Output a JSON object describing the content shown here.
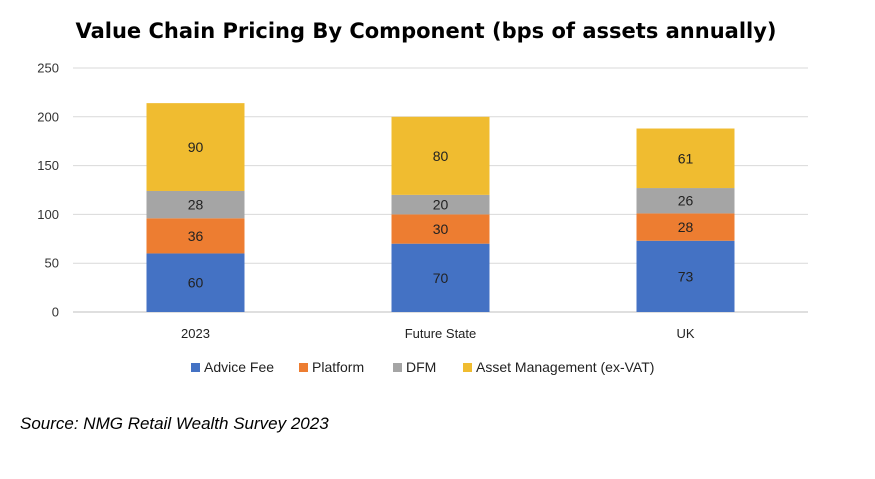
{
  "chart_data": {
    "type": "bar",
    "stacked": true,
    "title": "Value Chain Pricing By Component (bps of assets annually)",
    "categories": [
      "2023",
      "Future State",
      "UK"
    ],
    "series": [
      {
        "name": "Advice Fee",
        "color": "#4472C4",
        "values": [
          60,
          70,
          73
        ]
      },
      {
        "name": "Platform",
        "color": "#ED7D31",
        "values": [
          36,
          30,
          28
        ]
      },
      {
        "name": "DFM",
        "color": "#A5A5A5",
        "values": [
          28,
          20,
          26
        ]
      },
      {
        "name": "Asset Management (ex-VAT)",
        "color": "#F0BC30",
        "values": [
          90,
          80,
          61
        ]
      }
    ],
    "ylim": [
      0,
      250
    ],
    "yticks": [
      0,
      50,
      100,
      150,
      200,
      250
    ],
    "grid": true,
    "legend": "bottom"
  },
  "source": "Source: NMG Retail Wealth Survey 2023"
}
